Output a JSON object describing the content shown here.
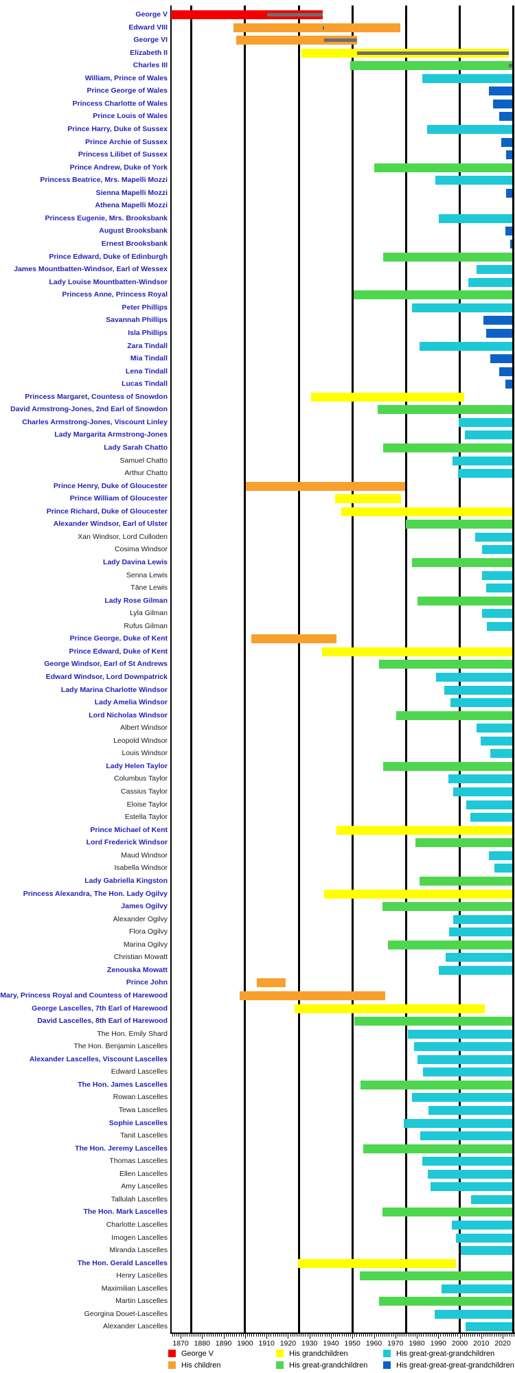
{
  "chart_data": {
    "type": "gantt",
    "description_visible_text_only": "lifespan timeline bars by generation with reign overlays",
    "x_axis": {
      "tick_labels": [
        "1870",
        "1880",
        "1890",
        "1900",
        "1910",
        "1920",
        "1930",
        "1940",
        "1950",
        "1960",
        "1970",
        "1980",
        "1990",
        "2000",
        "2010",
        "2020"
      ],
      "tick_years": [
        1870,
        1880,
        1890,
        1900,
        1910,
        1920,
        1930,
        1940,
        1950,
        1960,
        1970,
        1980,
        1990,
        2000,
        2010,
        2020
      ],
      "minor_tick_every_years": 1,
      "heavy_gridline_years": [
        1875,
        1900,
        1925,
        1950,
        1975,
        2000,
        2025
      ],
      "visible_range": [
        1865.5,
        2025.7
      ]
    },
    "colors": {
      "gen": [
        "#F20000",
        "#F7A02E",
        "#FFFF00",
        "#4FD64F",
        "#1FC8D7",
        "#0E62C6"
      ],
      "reign": "#6E6E6E",
      "gridline": "#000000",
      "label_link": "#2424B4",
      "label_plain": "#1B1B1B"
    },
    "legend": [
      {
        "label": "George V",
        "color": "#F20000"
      },
      {
        "label": "His children",
        "color": "#F7A02E"
      },
      {
        "label": "His grandchildren",
        "color": "#FFFF00"
      },
      {
        "label": "His great-grandchildren",
        "color": "#4FD64F"
      },
      {
        "label": "His great-great-grandchildren",
        "color": "#1FC8D7"
      },
      {
        "label": "His great-great-great-grandchildren",
        "color": "#0E62C6"
      }
    ],
    "people": [
      {
        "n": "George V",
        "g": 0,
        "b": 1865.45,
        "d": 1936.05,
        "r": [
          1910.35,
          1936.05
        ],
        "lk": true
      },
      {
        "n": "Edward VIII",
        "g": 1,
        "b": 1894.48,
        "d": 1972.4,
        "r": [
          1936.05,
          1936.93
        ],
        "lk": true
      },
      {
        "n": "George VI",
        "g": 1,
        "b": 1895.95,
        "d": 1952.1,
        "r": [
          1936.93,
          1952.1
        ],
        "lk": true
      },
      {
        "n": "Elizabeth II",
        "g": 2,
        "b": 1926.3,
        "d": 2022.7,
        "r": [
          1952.1,
          2022.7
        ],
        "lk": true
      },
      {
        "n": "Charles III",
        "g": 3,
        "b": 1948.87,
        "d": null,
        "r": [
          2022.7,
          null
        ],
        "lk": true
      },
      {
        "n": "William, Prince of Wales",
        "g": 4,
        "b": 1982.47,
        "d": null,
        "lk": true
      },
      {
        "n": "Prince George of Wales",
        "g": 5,
        "b": 2013.55,
        "d": null,
        "lk": true
      },
      {
        "n": "Princess Charlotte of Wales",
        "g": 5,
        "b": 2015.35,
        "d": null,
        "lk": true
      },
      {
        "n": "Prince Louis of Wales",
        "g": 5,
        "b": 2018.3,
        "d": null,
        "lk": true
      },
      {
        "n": "Prince Harry, Duke of Sussex",
        "g": 4,
        "b": 1984.7,
        "d": null,
        "lk": true
      },
      {
        "n": "Prince Archie of Sussex",
        "g": 5,
        "b": 2019.35,
        "d": null,
        "lk": true
      },
      {
        "n": "Princess Lilibet of Sussex",
        "g": 5,
        "b": 2021.42,
        "d": null,
        "lk": true
      },
      {
        "n": "Prince Andrew, Duke of York",
        "g": 3,
        "b": 1960.13,
        "d": null,
        "lk": true
      },
      {
        "n": "Princess Beatrice, Mrs. Mapelli Mozzi",
        "g": 4,
        "b": 1988.6,
        "d": null,
        "lk": true
      },
      {
        "n": "Sienna Mapelli Mozzi",
        "g": 5,
        "b": 2021.7,
        "d": null,
        "lk": true
      },
      {
        "n": "Athena Mapelli Mozzi",
        "g": 5,
        "b": 2025.08,
        "d": null,
        "lk": true
      },
      {
        "n": "Princess Eugenie, Mrs. Brooksbank",
        "g": 4,
        "b": 1990.22,
        "d": null,
        "lk": true
      },
      {
        "n": "August Brooksbank",
        "g": 5,
        "b": 2021.1,
        "d": null,
        "lk": true
      },
      {
        "n": "Ernest Brooksbank",
        "g": 5,
        "b": 2023.42,
        "d": null,
        "lk": true
      },
      {
        "n": "Prince Edward, Duke of Edinburgh",
        "g": 3,
        "b": 1964.2,
        "d": null,
        "lk": true
      },
      {
        "n": "James Mountbatten-Windsor, Earl of Wessex",
        "g": 4,
        "b": 2007.95,
        "d": null,
        "lk": true
      },
      {
        "n": "Lady Louise Mountbatten-Windsor",
        "g": 4,
        "b": 2003.85,
        "d": null,
        "lk": true
      },
      {
        "n": "Princess Anne, Princess Royal",
        "g": 3,
        "b": 1950.6,
        "d": null,
        "lk": true
      },
      {
        "n": "Peter Phillips",
        "g": 4,
        "b": 1977.85,
        "d": null,
        "lk": true
      },
      {
        "n": "Savannah Phillips",
        "g": 5,
        "b": 2010.97,
        "d": null,
        "lk": true
      },
      {
        "n": "Isla Phillips",
        "g": 5,
        "b": 2012.23,
        "d": null,
        "lk": true
      },
      {
        "n": "Zara Tindall",
        "g": 4,
        "b": 1981.37,
        "d": null,
        "lk": true
      },
      {
        "n": "Mia Tindall",
        "g": 5,
        "b": 2014.05,
        "d": null,
        "lk": true
      },
      {
        "n": "Lena Tindall",
        "g": 5,
        "b": 2018.45,
        "d": null,
        "lk": true
      },
      {
        "n": "Lucas Tindall",
        "g": 5,
        "b": 2021.2,
        "d": null,
        "lk": true
      },
      {
        "n": "Princess Margaret, Countess of Snowdon",
        "g": 2,
        "b": 1930.63,
        "d": 2002.1,
        "lk": true
      },
      {
        "n": "David Armstrong-Jones, 2nd Earl of Snowdon",
        "g": 3,
        "b": 1961.83,
        "d": null,
        "lk": true
      },
      {
        "n": "Charles Armstrong-Jones, Viscount Linley",
        "g": 4,
        "b": 1999.5,
        "d": null,
        "lk": true
      },
      {
        "n": "Lady Margarita Armstrong-Jones",
        "g": 4,
        "b": 2002.37,
        "d": null,
        "lk": true
      },
      {
        "n": "Lady Sarah Chatto",
        "g": 3,
        "b": 1964.33,
        "d": null,
        "lk": true
      },
      {
        "n": "Samuel Chatto",
        "g": 4,
        "b": 1996.55,
        "d": null,
        "lk": false
      },
      {
        "n": "Arthur Chatto",
        "g": 4,
        "b": 1999.1,
        "d": null,
        "lk": false
      },
      {
        "n": "Prince Henry, Duke of Gloucester",
        "g": 1,
        "b": 1900.23,
        "d": 1974.45,
        "lk": true
      },
      {
        "n": "Prince William of Gloucester",
        "g": 2,
        "b": 1941.97,
        "d": 1972.65,
        "lk": true
      },
      {
        "n": "Prince Richard, Duke of Gloucester",
        "g": 2,
        "b": 1944.65,
        "d": null,
        "lk": true
      },
      {
        "n": "Alexander Windsor, Earl of Ulster",
        "g": 3,
        "b": 1974.8,
        "d": null,
        "lk": true
      },
      {
        "n": "Xan Windsor, Lord Culloden",
        "g": 4,
        "b": 2007.2,
        "d": null,
        "lk": false
      },
      {
        "n": "Cosima Windsor",
        "g": 4,
        "b": 2010.35,
        "d": null,
        "lk": false
      },
      {
        "n": "Lady Davina Lewis",
        "g": 3,
        "b": 1977.87,
        "d": null,
        "lk": true
      },
      {
        "n": "Senna Lewis",
        "g": 4,
        "b": 2010.45,
        "d": null,
        "lk": false
      },
      {
        "n": "Tāne Lewis",
        "g": 4,
        "b": 2012.37,
        "d": null,
        "lk": false
      },
      {
        "n": "Lady Rose Gilman",
        "g": 3,
        "b": 1980.17,
        "d": null,
        "lk": true
      },
      {
        "n": "Lyla Gilman",
        "g": 4,
        "b": 2010.37,
        "d": null,
        "lk": false
      },
      {
        "n": "Rufus Gilman",
        "g": 4,
        "b": 2012.75,
        "d": null,
        "lk": false
      },
      {
        "n": "Prince George, Duke of Kent",
        "g": 1,
        "b": 1902.97,
        "d": 1942.65,
        "lk": true
      },
      {
        "n": "Prince Edward, Duke of Kent",
        "g": 2,
        "b": 1935.78,
        "d": null,
        "lk": true
      },
      {
        "n": "George Windsor, Earl of St Andrews",
        "g": 3,
        "b": 1962.47,
        "d": null,
        "lk": true
      },
      {
        "n": "Edward Windsor, Lord Downpatrick",
        "g": 4,
        "b": 1988.92,
        "d": null,
        "lk": true
      },
      {
        "n": "Lady Marina Charlotte Windsor",
        "g": 4,
        "b": 1992.75,
        "d": null,
        "lk": true
      },
      {
        "n": "Lady Amelia Windsor",
        "g": 4,
        "b": 1995.65,
        "d": null,
        "lk": true
      },
      {
        "n": "Lord Nicholas Windsor",
        "g": 3,
        "b": 1970.55,
        "d": null,
        "lk": true
      },
      {
        "n": "Albert Windsor",
        "g": 4,
        "b": 2007.7,
        "d": null,
        "lk": false
      },
      {
        "n": "Leopold Windsor",
        "g": 4,
        "b": 2009.72,
        "d": null,
        "lk": false
      },
      {
        "n": "Louis Windsor",
        "g": 4,
        "b": 2014.35,
        "d": null,
        "lk": false
      },
      {
        "n": "Lady Helen Taylor",
        "g": 3,
        "b": 1964.32,
        "d": null,
        "lk": true
      },
      {
        "n": "Columbus Taylor",
        "g": 4,
        "b": 1994.6,
        "d": null,
        "lk": false
      },
      {
        "n": "Cassius Taylor",
        "g": 4,
        "b": 1996.97,
        "d": null,
        "lk": false
      },
      {
        "n": "Eloise Taylor",
        "g": 4,
        "b": 2003.17,
        "d": null,
        "lk": false
      },
      {
        "n": "Estella Taylor",
        "g": 4,
        "b": 2004.95,
        "d": null,
        "lk": false
      },
      {
        "n": "Prince Michael of Kent",
        "g": 2,
        "b": 1942.5,
        "d": null,
        "lk": true
      },
      {
        "n": "Lord Frederick Windsor",
        "g": 3,
        "b": 1979.3,
        "d": null,
        "lk": true
      },
      {
        "n": "Maud Windsor",
        "g": 4,
        "b": 2013.6,
        "d": null,
        "lk": false
      },
      {
        "n": "Isabella Windsor",
        "g": 4,
        "b": 2016.07,
        "d": null,
        "lk": false
      },
      {
        "n": "Lady Gabriella Kingston",
        "g": 3,
        "b": 1981.3,
        "d": null,
        "lk": true
      },
      {
        "n": "Princess Alexandra, The Hon. Lady Ogilvy",
        "g": 2,
        "b": 1936.97,
        "d": null,
        "lk": true
      },
      {
        "n": "James Ogilvy",
        "g": 3,
        "b": 1964.15,
        "d": null,
        "lk": true
      },
      {
        "n": "Alexander Ogilvy",
        "g": 4,
        "b": 1996.9,
        "d": null,
        "lk": false
      },
      {
        "n": "Flora Ogilvy",
        "g": 4,
        "b": 1994.95,
        "d": null,
        "lk": false
      },
      {
        "n": "Marina Ogilvy",
        "g": 3,
        "b": 1966.58,
        "d": null,
        "lk": false
      },
      {
        "n": "Christian Mowatt",
        "g": 4,
        "b": 1993.45,
        "d": null,
        "lk": false
      },
      {
        "n": "Zenouska Mowatt",
        "g": 4,
        "b": 1990.35,
        "d": null,
        "lk": true
      },
      {
        "n": "Prince John",
        "g": 1,
        "b": 1905.5,
        "d": 1919.05,
        "lk": true
      },
      {
        "n": "Princess Mary, Princess Royal and Countess of Harewood",
        "g": 1,
        "b": 1897.32,
        "d": 1965.23,
        "lk": true
      },
      {
        "n": "George Lascelles, 7th Earl of Harewood",
        "g": 2,
        "b": 1923.1,
        "d": 2011.5,
        "lk": true
      },
      {
        "n": "David Lascelles, 8th Earl of Harewood",
        "g": 3,
        "b": 1950.8,
        "d": null,
        "lk": true
      },
      {
        "n": "The Hon. Emily Shard",
        "g": 4,
        "b": 1975.85,
        "d": null,
        "lk": false
      },
      {
        "n": "The Hon. Benjamin Lascelles",
        "g": 4,
        "b": 1978.7,
        "d": null,
        "lk": false
      },
      {
        "n": "Alexander Lascelles, Viscount Lascelles",
        "g": 4,
        "b": 1980.35,
        "d": null,
        "lk": true
      },
      {
        "n": "Edward Lascelles",
        "g": 4,
        "b": 1982.85,
        "d": null,
        "lk": false
      },
      {
        "n": "The Hon. James Lascelles",
        "g": 3,
        "b": 1953.75,
        "d": null,
        "lk": true
      },
      {
        "n": "Rowan Lascelles",
        "g": 4,
        "b": 1977.85,
        "d": null,
        "lk": false
      },
      {
        "n": "Tewa Lascelles",
        "g": 4,
        "b": 1985.45,
        "d": null,
        "lk": false
      },
      {
        "n": "Sophie Lascelles",
        "g": 4,
        "b": 1973.77,
        "d": null,
        "lk": true
      },
      {
        "n": "Tanit Lascelles",
        "g": 4,
        "b": 1981.55,
        "d": null,
        "lk": false
      },
      {
        "n": "The Hon. Jeremy Lascelles",
        "g": 3,
        "b": 1955.1,
        "d": null,
        "lk": true
      },
      {
        "n": "Thomas Lascelles",
        "g": 4,
        "b": 1982.7,
        "d": null,
        "lk": false
      },
      {
        "n": "Ellen Lascelles",
        "g": 4,
        "b": 1984.95,
        "d": null,
        "lk": false
      },
      {
        "n": "Amy Lascelles",
        "g": 4,
        "b": 1986.45,
        "d": null,
        "lk": false
      },
      {
        "n": "Tallulah Lascelles",
        "g": 4,
        "b": 2005.2,
        "d": null,
        "lk": false
      },
      {
        "n": "The Hon. Mark Lascelles",
        "g": 3,
        "b": 1964.1,
        "d": null,
        "lk": true
      },
      {
        "n": "Charlotte Lascelles",
        "g": 4,
        "b": 1996.3,
        "d": null,
        "lk": false
      },
      {
        "n": "Imogen Lascelles",
        "g": 4,
        "b": 1998.1,
        "d": null,
        "lk": false
      },
      {
        "n": "Miranda Lascelles",
        "g": 4,
        "b": 2000.3,
        "d": null,
        "lk": false
      },
      {
        "n": "The Hon. Gerald Lascelles",
        "g": 2,
        "b": 1924.63,
        "d": 1998.1,
        "lk": true
      },
      {
        "n": "Henry Lascelles",
        "g": 3,
        "b": 1953.3,
        "d": null,
        "lk": false
      },
      {
        "n": "Maximilian Lascelles",
        "g": 4,
        "b": 1991.45,
        "d": null,
        "lk": false
      },
      {
        "n": "Martin Lascelles",
        "g": 3,
        "b": 1962.35,
        "d": null,
        "lk": false
      },
      {
        "n": "Georgina Douet-Lascelles",
        "g": 4,
        "b": 1988.4,
        "d": null,
        "lk": false
      },
      {
        "n": "Alexander Lascelles",
        "g": 4,
        "b": 2002.8,
        "d": null,
        "lk": false
      }
    ]
  }
}
